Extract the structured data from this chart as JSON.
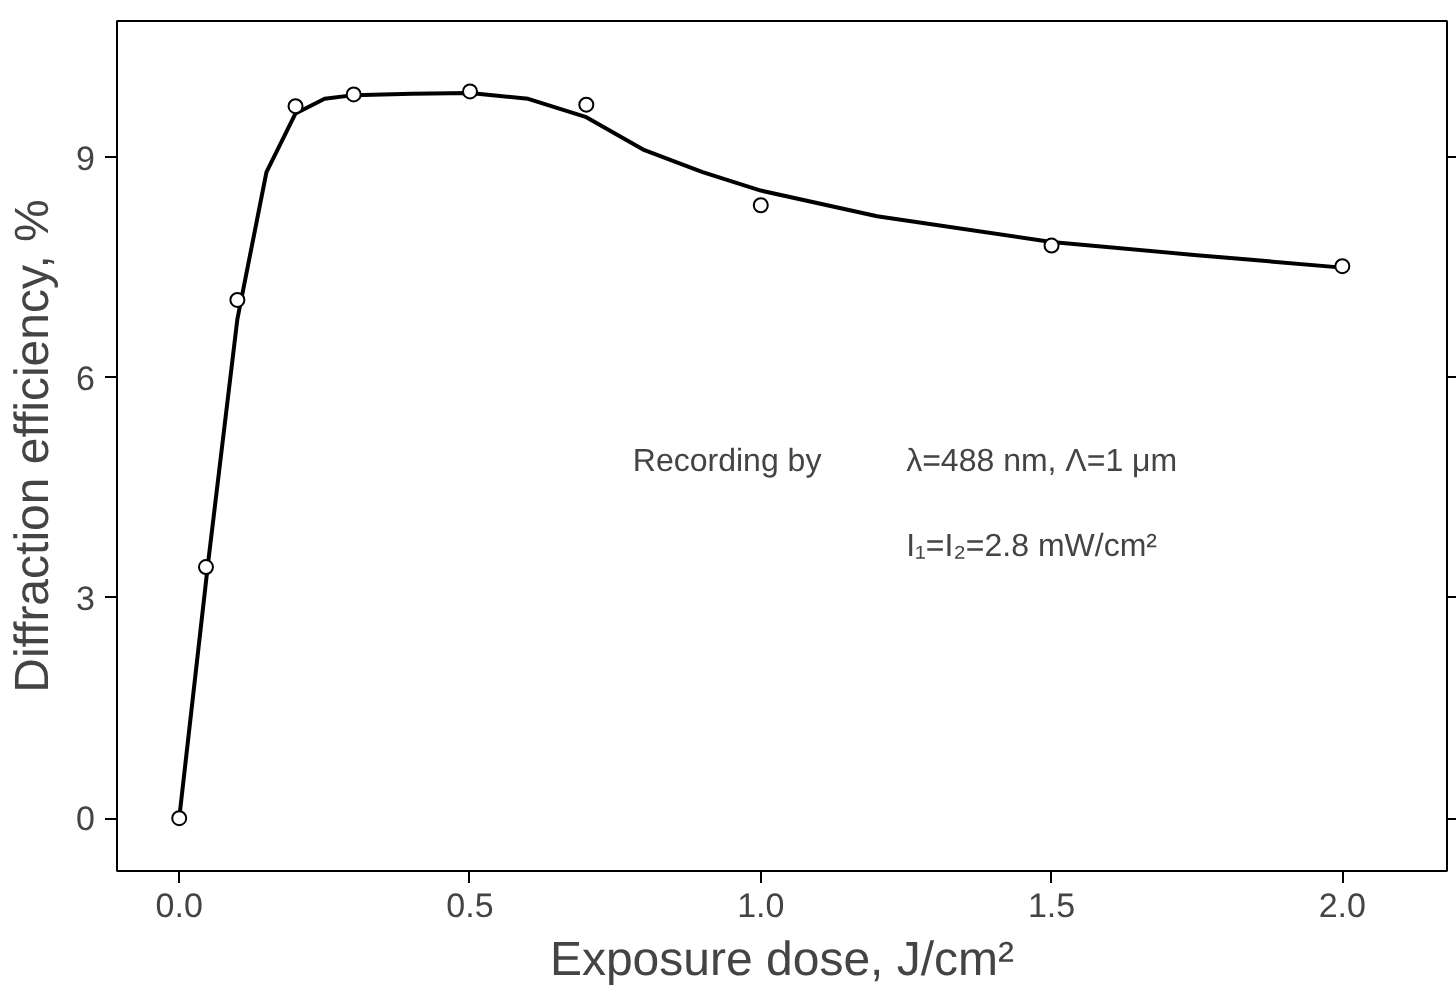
{
  "chart_data": {
    "type": "scatter",
    "xlabel": "Exposure dose, J/cm²",
    "ylabel": "Diffraction efficiency, %",
    "xlim": [
      -0.107,
      2.18
    ],
    "ylim": [
      -0.72,
      10.86
    ],
    "xticks": [
      {
        "value": 0,
        "label": "0.0"
      },
      0.5,
      {
        "value": 1,
        "label": "1.0"
      },
      1.5,
      {
        "value": 2,
        "label": "2.0"
      }
    ],
    "yticks": [
      0,
      3,
      6,
      9
    ],
    "grid": false,
    "series": [
      {
        "type": "line",
        "color": "#000000",
        "marker": "none",
        "x": [
          0,
          0.05,
          0.1,
          0.15,
          0.2,
          0.25,
          0.3,
          0.4,
          0.5,
          0.6,
          0.7,
          0.8,
          0.9,
          1.0,
          1.2,
          1.5,
          1.75,
          2.0
        ],
        "values": [
          0,
          3.5,
          6.8,
          8.8,
          9.6,
          9.8,
          9.85,
          9.87,
          9.88,
          9.8,
          9.55,
          9.1,
          8.8,
          8.55,
          8.2,
          7.85,
          7.67,
          7.5
        ]
      },
      {
        "color": "#000000",
        "marker": "circle",
        "x": [
          0,
          0.046,
          0.1,
          0.2,
          0.3,
          0.5,
          0.7,
          1.0,
          1.5,
          2.0
        ],
        "values": [
          0,
          3.42,
          7.06,
          9.7,
          9.86,
          9.9,
          9.72,
          8.35,
          7.8,
          7.52
        ]
      }
    ],
    "annotations": [
      "Recording by",
      "λ=488 nm, Λ=1 μm",
      "I₁=I₂=2.8 mW/cm²"
    ]
  }
}
